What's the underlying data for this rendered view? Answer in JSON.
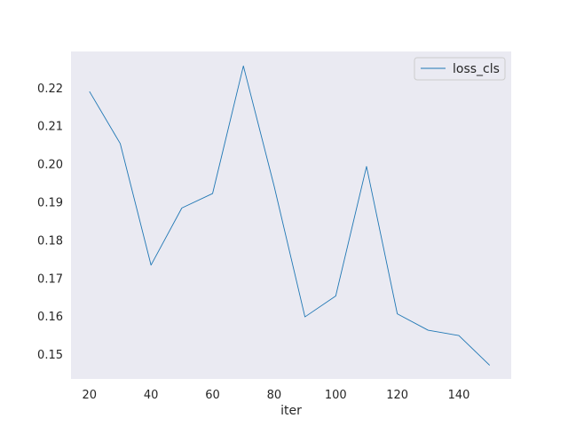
{
  "chart_data": {
    "type": "line",
    "title": "",
    "xlabel": "iter",
    "ylabel": "",
    "xlim": [
      14,
      157
    ],
    "ylim": [
      0.1435,
      0.2295
    ],
    "xticks": [
      20,
      40,
      60,
      80,
      100,
      120,
      140
    ],
    "yticks": [
      0.15,
      0.16,
      0.17,
      0.18,
      0.19,
      0.2,
      0.21,
      0.22
    ],
    "ytick_labels": [
      "0.15",
      "0.16",
      "0.17",
      "0.18",
      "0.19",
      "0.20",
      "0.21",
      "0.22"
    ],
    "grid": false,
    "legend": "top-right",
    "background": "#eaeaf2",
    "x": [
      20,
      30,
      40,
      50,
      60,
      70,
      80,
      90,
      100,
      110,
      120,
      130,
      140,
      150
    ],
    "series": [
      {
        "name": "loss_cls",
        "color": "#1f77b4",
        "values": [
          0.219,
          0.2053,
          0.1734,
          0.1884,
          0.1922,
          0.2257,
          0.1941,
          0.1598,
          0.1653,
          0.1993,
          0.1606,
          0.1563,
          0.1549,
          0.1471
        ]
      }
    ]
  }
}
